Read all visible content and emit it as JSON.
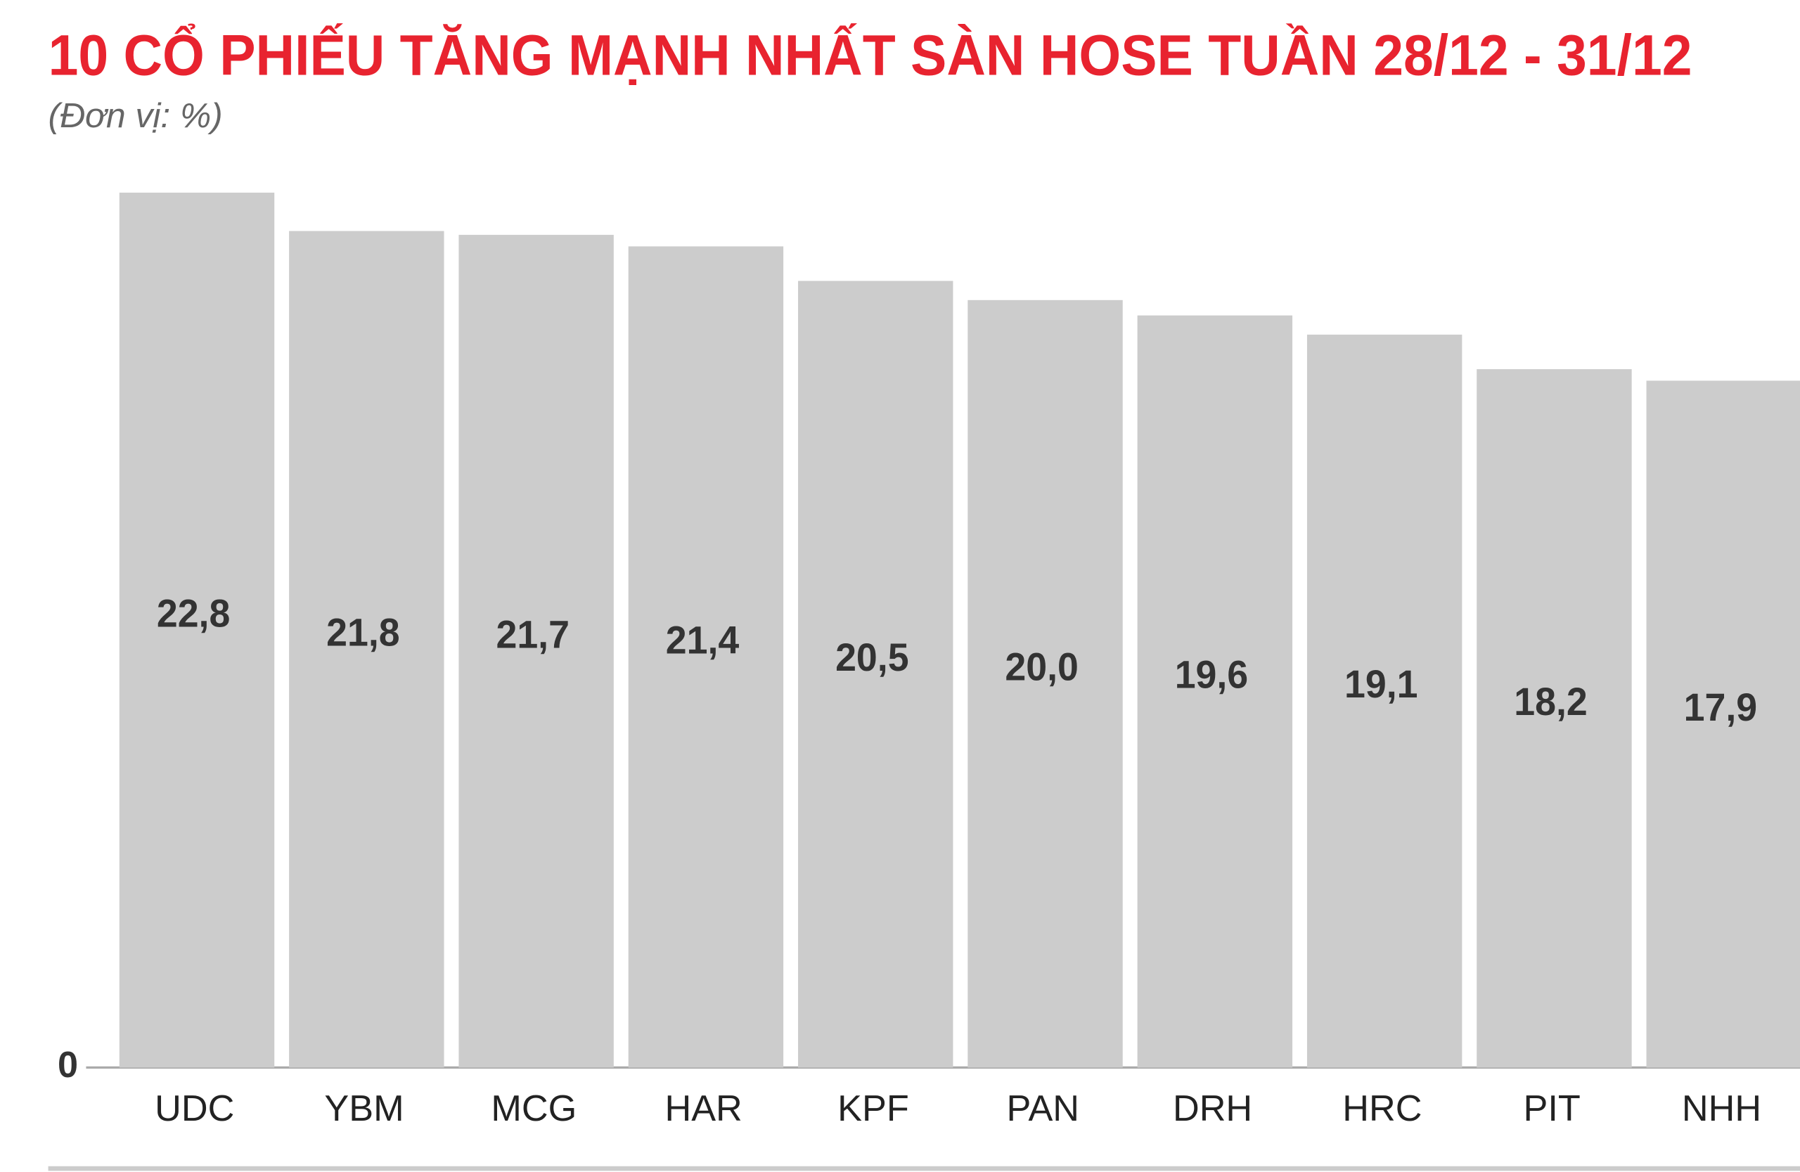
{
  "chart_data": {
    "type": "bar",
    "title": "10 CỔ PHIẾU TĂNG MẠNH NHẤT SÀN HOSE TUẦN 28/12 - 31/12",
    "subtitle": "(Đơn vị: %)",
    "categories": [
      "UDC",
      "YBM",
      "MCG",
      "HAR",
      "KPF",
      "PAN",
      "DRH",
      "HRC",
      "PIT",
      "NHH"
    ],
    "values": [
      22.8,
      21.8,
      21.7,
      21.4,
      20.5,
      20.0,
      19.6,
      19.1,
      18.2,
      17.9
    ],
    "value_labels": [
      "22,8",
      "21,8",
      "21,7",
      "21,4",
      "20,5",
      "20,0",
      "19,6",
      "19,1",
      "18,2",
      "17,9"
    ],
    "color": "#cccccc",
    "ylim": [
      0,
      24
    ],
    "yticks": [
      0
    ],
    "grid": false
  }
}
